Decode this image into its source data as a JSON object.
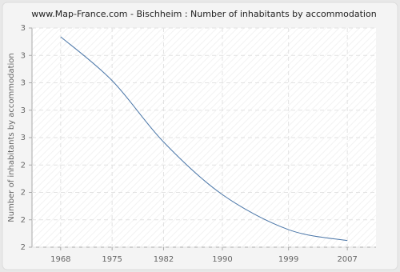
{
  "chart_data": {
    "type": "line",
    "title": "www.Map-France.com - Bischheim : Number of inhabitants by accommodation",
    "y_label": "Number of inhabitants by accommodation",
    "x": [
      1968,
      1975,
      1982,
      1990,
      1999,
      2007
    ],
    "series": [
      {
        "name": "Bischheim",
        "color": "#4a76a8",
        "values": [
          2.96,
          2.76,
          2.48,
          2.24,
          2.08,
          2.03
        ]
      }
    ],
    "xlim": [
      1964.1,
      2010.9
    ],
    "xticks": [
      1968,
      1975,
      1982,
      1990,
      1999,
      2007
    ],
    "ylim": [
      2,
      3
    ],
    "yticks": [
      {
        "value": 2,
        "label": "2"
      },
      {
        "value": 2.125,
        "label": "2"
      },
      {
        "value": 2.25,
        "label": "2"
      },
      {
        "value": 2.375,
        "label": "2"
      },
      {
        "value": 2.5,
        "label": "3"
      },
      {
        "value": 2.625,
        "label": "3"
      },
      {
        "value": 2.75,
        "label": "3"
      },
      {
        "value": 2.875,
        "label": "3"
      },
      {
        "value": 3,
        "label": "3"
      }
    ],
    "grid": true
  }
}
